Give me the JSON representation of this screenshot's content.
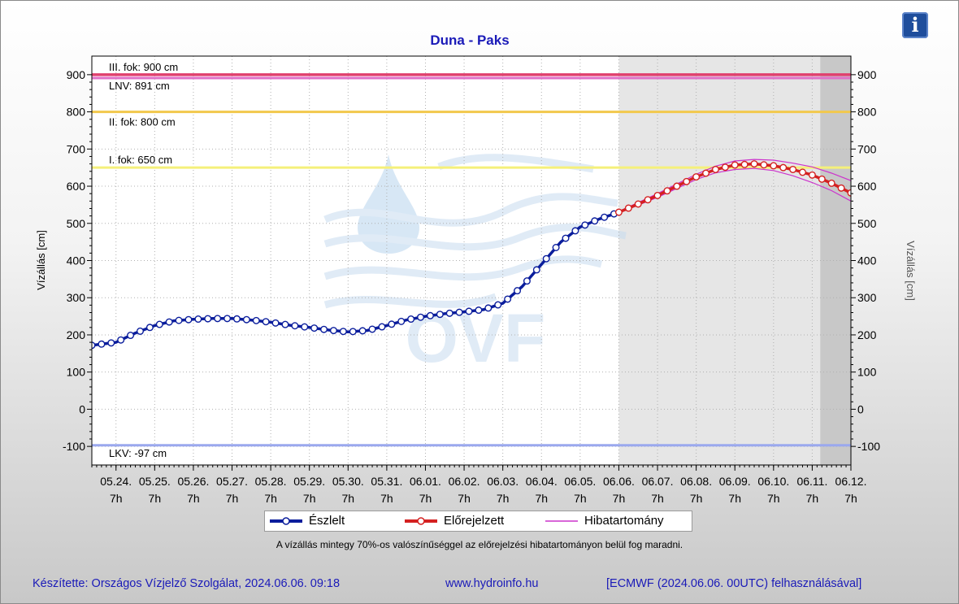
{
  "info_button_label": "i",
  "note": "A vízállás mintegy 70%-os valószínűséggel az előrejelzési hibatartományon belül fog maradni.",
  "footer": {
    "author": "Készítette: Országos Vízjelző Szolgálat, 2024.06.06. 09:18",
    "website": "www.hydroinfo.hu",
    "source": "[ECMWF (2024.06.06. 00UTC) felhasználásával]"
  },
  "watermark": "OVF",
  "colors": {
    "observed": "#0a1d9c",
    "forecast": "#d42020",
    "error_band": "#cc33cc",
    "level_3": "#e0406e",
    "lnv": "#e070c8",
    "level_2": "#f2c84c",
    "level_1": "#f5f07a",
    "lkv": "#9aa8ee",
    "title": "#1a1ab8"
  },
  "chart_data": {
    "type": "line",
    "title": "Duna - Paks",
    "ylabel_left": "Vízállás [cm]",
    "ylabel_right": "Vízállás [cm]",
    "ylim": [
      -150,
      950
    ],
    "yticks": [
      -100,
      0,
      100,
      200,
      300,
      400,
      500,
      600,
      700,
      800,
      900
    ],
    "x_start": "05.23. 16h",
    "x_end": "06.12. 7h",
    "x_ticks": [
      {
        "date": "05.24.",
        "hour": "7h"
      },
      {
        "date": "05.25.",
        "hour": "7h"
      },
      {
        "date": "05.26.",
        "hour": "7h"
      },
      {
        "date": "05.27.",
        "hour": "7h"
      },
      {
        "date": "05.28.",
        "hour": "7h"
      },
      {
        "date": "05.29.",
        "hour": "7h"
      },
      {
        "date": "05.30.",
        "hour": "7h"
      },
      {
        "date": "05.31.",
        "hour": "7h"
      },
      {
        "date": "06.01.",
        "hour": "7h"
      },
      {
        "date": "06.02.",
        "hour": "7h"
      },
      {
        "date": "06.03.",
        "hour": "7h"
      },
      {
        "date": "06.04.",
        "hour": "7h"
      },
      {
        "date": "06.05.",
        "hour": "7h"
      },
      {
        "date": "06.06.",
        "hour": "7h"
      },
      {
        "date": "06.07.",
        "hour": "7h"
      },
      {
        "date": "06.08.",
        "hour": "7h"
      },
      {
        "date": "06.09.",
        "hour": "7h"
      },
      {
        "date": "06.10.",
        "hour": "7h"
      },
      {
        "date": "06.11.",
        "hour": "7h"
      },
      {
        "date": "06.12.",
        "hour": "7h"
      }
    ],
    "forecast_region_start": "06.06. 7h",
    "extended_region_start": "06.11. 12h",
    "thresholds": [
      {
        "label": "III. fok: 900 cm",
        "value": 900,
        "color_key": "level_3"
      },
      {
        "label": "LNV: 891 cm",
        "value": 891,
        "color_key": "lnv"
      },
      {
        "label": "II. fok: 800 cm",
        "value": 800,
        "color_key": "level_2"
      },
      {
        "label": "I. fok: 650 cm",
        "value": 650,
        "color_key": "level_1"
      },
      {
        "label": "LKV: -97 cm",
        "value": -97,
        "color_key": "lkv"
      }
    ],
    "legend": [
      "Észlelt",
      "Előrejelzett",
      "Hibatartomány"
    ],
    "series": [
      {
        "name": "Észlelt",
        "x": [
          "05.23. 16h",
          "05.24. 7h",
          "05.24. 19h",
          "05.25. 7h",
          "05.25. 19h",
          "05.26. 7h",
          "05.26. 19h",
          "05.27. 7h",
          "05.27. 19h",
          "05.28. 7h",
          "05.28. 19h",
          "05.29. 7h",
          "05.29. 19h",
          "05.30. 7h",
          "05.30. 19h",
          "05.31. 7h",
          "05.31. 19h",
          "06.01. 7h",
          "06.01. 19h",
          "06.02. 7h",
          "06.02. 19h",
          "06.03. 7h",
          "06.03. 19h",
          "06.04. 7h",
          "06.04. 19h",
          "06.05. 7h",
          "06.05. 19h",
          "06.06. 7h"
        ],
        "values": [
          172,
          180,
          205,
          225,
          238,
          242,
          244,
          244,
          240,
          234,
          226,
          220,
          213,
          208,
          212,
          225,
          240,
          250,
          257,
          262,
          268,
          285,
          330,
          390,
          450,
          490,
          512,
          530
        ]
      },
      {
        "name": "Előrejelzett",
        "x": [
          "06.06. 7h",
          "06.06. 19h",
          "06.07. 7h",
          "06.07. 19h",
          "06.08. 7h",
          "06.08. 19h",
          "06.09. 7h",
          "06.09. 19h",
          "06.10. 7h",
          "06.10. 19h",
          "06.11. 7h",
          "06.11. 19h",
          "06.12. 7h"
        ],
        "values": [
          530,
          552,
          575,
          600,
          625,
          645,
          657,
          660,
          655,
          645,
          630,
          608,
          582
        ]
      },
      {
        "name": "Hibatartomány (felső)",
        "x": [
          "06.06. 7h",
          "06.07. 7h",
          "06.08. 7h",
          "06.08. 19h",
          "06.09. 7h",
          "06.09. 19h",
          "06.10. 7h",
          "06.10. 19h",
          "06.11. 7h",
          "06.11. 19h",
          "06.12. 7h"
        ],
        "values": [
          532,
          580,
          632,
          654,
          668,
          672,
          670,
          662,
          652,
          635,
          615
        ]
      },
      {
        "name": "Hibatartomány (alsó)",
        "x": [
          "06.06. 7h",
          "06.07. 7h",
          "06.08. 7h",
          "06.08. 19h",
          "06.09. 7h",
          "06.09. 19h",
          "06.10. 7h",
          "06.10. 19h",
          "06.11. 7h",
          "06.11. 19h",
          "06.12. 7h"
        ],
        "values": [
          528,
          570,
          618,
          636,
          645,
          648,
          642,
          628,
          610,
          588,
          560
        ]
      }
    ]
  }
}
